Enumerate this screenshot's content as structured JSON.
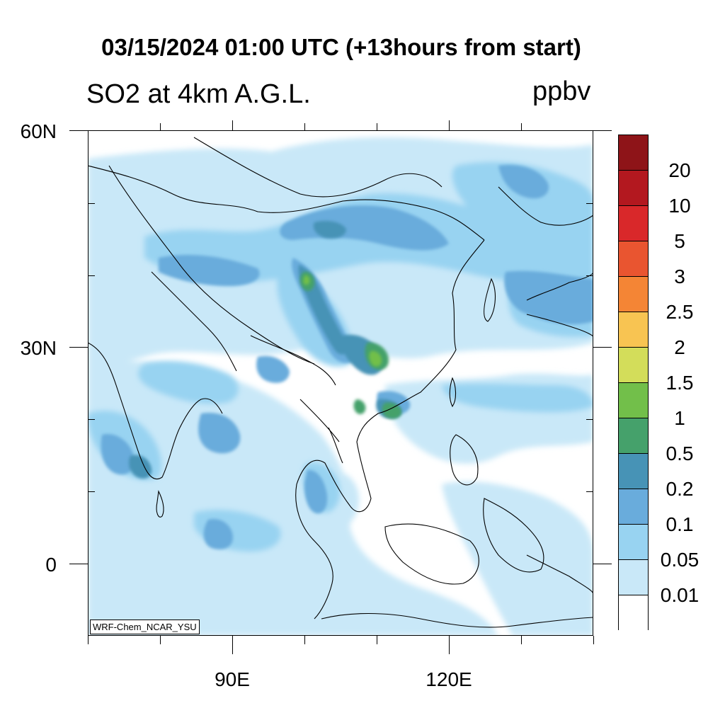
{
  "title": "03/15/2024 01:00 UTC (+13hours from start)",
  "subtitle_left": "SO2 at 4km A.G.L.",
  "subtitle_right": "ppbv",
  "credit": "WRF-Chem_NCAR_YSU",
  "lat_labels": {
    "n60": "60N",
    "n30": "30N",
    "eq": "0"
  },
  "lon_labels": {
    "e90": "90E",
    "e120": "120E"
  },
  "colorbar": {
    "labels": [
      "20",
      "10",
      "5",
      "3",
      "2.5",
      "2",
      "1.5",
      "1",
      "0.5",
      "0.2",
      "0.1",
      "0.05",
      "0.01"
    ],
    "colors": [
      "#8e1418",
      "#b3181f",
      "#d9282a",
      "#e95530",
      "#f48535",
      "#f8c452",
      "#d3dd5a",
      "#72bf4a",
      "#45a16b",
      "#4793b6",
      "#69acdc",
      "#98d3f1",
      "#c9e8f8",
      "#ffffff"
    ]
  },
  "map_colors": {
    "lvl1": "#c9e8f8",
    "lvl2": "#98d3f1",
    "lvl3": "#69acdc",
    "lvl4": "#4793b6",
    "lvl5": "#45a16b",
    "lvl6": "#72bf4a"
  }
}
